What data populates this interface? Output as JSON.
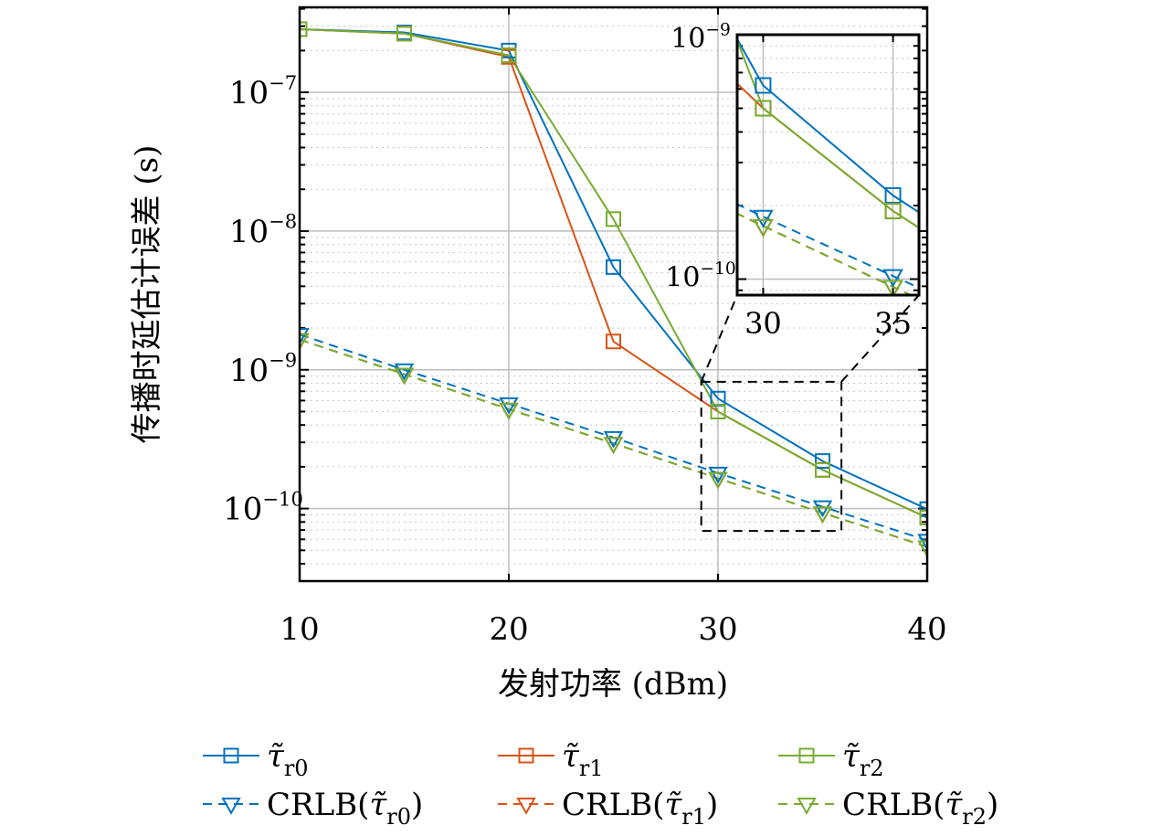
{
  "chart_data": {
    "type": "line",
    "xlabel": "发射功率 (dBm)",
    "ylabel": "传播时延估计误差 (s)",
    "xscale": "linear",
    "yscale": "log",
    "xlim": [
      10,
      40
    ],
    "ylim": [
      3e-11,
      4.1e-07
    ],
    "xticks": [
      10,
      20,
      30,
      40
    ],
    "xtick_labels": [
      "10",
      "20",
      "30",
      "40"
    ],
    "yticks": [
      1e-10,
      1e-09,
      1e-08,
      1e-07
    ],
    "ytick_labels": [
      {
        "base": "10",
        "exp": "−10"
      },
      {
        "base": "10",
        "exp": "−9"
      },
      {
        "base": "10",
        "exp": "−8"
      },
      {
        "base": "10",
        "exp": "−7"
      }
    ],
    "grid": true,
    "minor_grid": true,
    "legend_placement": "bottom-outside",
    "x": [
      10,
      15,
      20,
      25,
      30,
      35,
      40
    ],
    "series": [
      {
        "name_main": "τ̃",
        "name_sub": "r0",
        "color": "#0072BD",
        "marker": "square",
        "linestyle": "solid",
        "values": [
          2.85e-07,
          2.7e-07,
          2e-07,
          5.5e-09,
          6.2e-10,
          2.2e-10,
          9.9e-11
        ]
      },
      {
        "name_main": "τ̃",
        "name_sub": "r1",
        "color": "#D95319",
        "marker": "square",
        "linestyle": "solid",
        "values": [
          2.85e-07,
          2.65e-07,
          1.8e-07,
          1.6e-09,
          5e-10,
          1.9e-10,
          8.6e-11
        ]
      },
      {
        "name_main": "τ̃",
        "name_sub": "r2",
        "color": "#77AC30",
        "marker": "square",
        "linestyle": "solid",
        "values": [
          2.85e-07,
          2.65e-07,
          1.85e-07,
          1.22e-08,
          5e-10,
          1.9e-10,
          8.6e-11
        ]
      },
      {
        "name_prefix": "CRLB(",
        "name_main": "τ̃",
        "name_sub": "r0",
        "name_suffix": ")",
        "color": "#0072BD",
        "marker": "triangle-down",
        "linestyle": "dashed",
        "values": [
          1.8e-09,
          1e-09,
          5.7e-10,
          3.25e-10,
          1.8e-10,
          1.03e-10,
          5.9e-11
        ]
      },
      {
        "name_prefix": "CRLB(",
        "name_main": "τ̃",
        "name_sub": "r1",
        "name_suffix": ")",
        "color": "#D95319",
        "marker": "triangle-down",
        "linestyle": "dashed",
        "values": [
          1.65e-09,
          9.3e-10,
          5.2e-10,
          2.95e-10,
          1.65e-10,
          9.3e-11,
          5.3e-11
        ]
      },
      {
        "name_prefix": "CRLB(",
        "name_main": "τ̃",
        "name_sub": "r2",
        "name_suffix": ")",
        "color": "#77AC30",
        "marker": "triangle-down",
        "linestyle": "dashed",
        "values": [
          1.65e-09,
          9.3e-10,
          5.2e-10,
          2.95e-10,
          1.65e-10,
          9.3e-11,
          5.3e-11
        ]
      }
    ],
    "inset": {
      "xlim": [
        29.0,
        36.0
      ],
      "ylim": [
        8.6e-11,
        1e-09
      ],
      "xticks": [
        30,
        35
      ],
      "xtick_labels": [
        "30",
        "35"
      ],
      "yticks": [
        1e-10,
        1e-09
      ],
      "ytick_labels": [
        {
          "base": "10",
          "exp": "−10"
        },
        {
          "base": "10",
          "exp": "−9"
        }
      ],
      "zoom_region": {
        "xlim": [
          29.2,
          35.9
        ],
        "ylim": [
          6.9e-11,
          8.2e-10
        ]
      }
    }
  }
}
